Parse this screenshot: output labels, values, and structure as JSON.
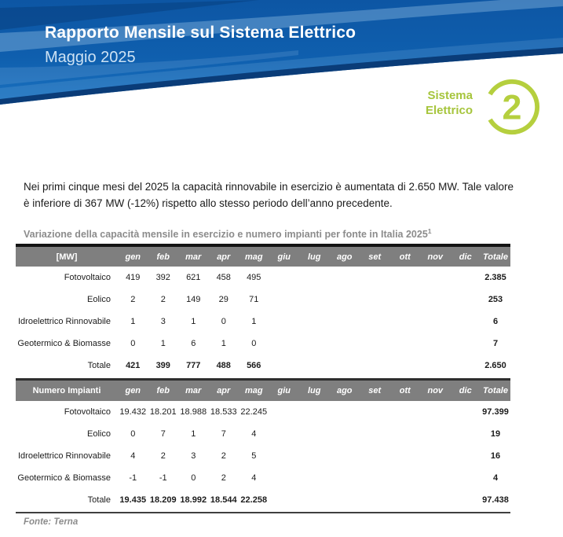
{
  "colors": {
    "blue_main": "#0f5caa",
    "blue_dark_edge": "#0a3c78",
    "green": "#a6c53c",
    "green_circle": "#b5cf3e",
    "header_gray": "#7f7f7f",
    "caption_gray": "#8c8c8c",
    "text_dark": "#1a1a1a"
  },
  "header": {
    "title": "Rapporto Mensile sul Sistema Elettrico",
    "subtitle": "Maggio 2025",
    "section_label_line1": "Sistema",
    "section_label_line2": "Elettrico",
    "section_number": "2"
  },
  "intro_paragraph": "Nei primi cinque mesi del 2025 la capacità rinnovabile in esercizio è aumentata di 2.650 MW. Tale valore è inferiore di 367 MW (-12%) rispetto allo stesso periodo dell’anno precedente.",
  "table_caption": {
    "text": "Variazione della capacità mensile in esercizio e numero impianti per fonte in Italia 2025",
    "footnote_marker": "1"
  },
  "months": [
    "gen",
    "feb",
    "mar",
    "apr",
    "mag",
    "giu",
    "lug",
    "ago",
    "set",
    "ott",
    "nov",
    "dic"
  ],
  "total_header": "Totale",
  "tables": [
    {
      "unit_label": "[MW]",
      "rows": [
        {
          "label": "Fotovoltaico",
          "values": [
            "419",
            "392",
            "621",
            "458",
            "495",
            "",
            "",
            "",
            "",
            "",
            "",
            ""
          ],
          "total": "2.385"
        },
        {
          "label": "Eolico",
          "values": [
            "2",
            "2",
            "149",
            "29",
            "71",
            "",
            "",
            "",
            "",
            "",
            "",
            ""
          ],
          "total": "253"
        },
        {
          "label": "Idroelettrico Rinnovabile",
          "values": [
            "1",
            "3",
            "1",
            "0",
            "1",
            "",
            "",
            "",
            "",
            "",
            "",
            ""
          ],
          "total": "6"
        },
        {
          "label": "Geotermico & Biomasse",
          "values": [
            "0",
            "1",
            "6",
            "1",
            "0",
            "",
            "",
            "",
            "",
            "",
            "",
            ""
          ],
          "total": "7"
        }
      ],
      "totals_row": {
        "label": "Totale",
        "values": [
          "421",
          "399",
          "777",
          "488",
          "566",
          "",
          "",
          "",
          "",
          "",
          "",
          ""
        ],
        "total": "2.650"
      }
    },
    {
      "unit_label": "Numero Impianti",
      "rows": [
        {
          "label": "Fotovoltaico",
          "values": [
            "19.432",
            "18.201",
            "18.988",
            "18.533",
            "22.245",
            "",
            "",
            "",
            "",
            "",
            "",
            ""
          ],
          "total": "97.399"
        },
        {
          "label": "Eolico",
          "values": [
            "0",
            "7",
            "1",
            "7",
            "4",
            "",
            "",
            "",
            "",
            "",
            "",
            ""
          ],
          "total": "19"
        },
        {
          "label": "Idroelettrico Rinnovabile",
          "values": [
            "4",
            "2",
            "3",
            "2",
            "5",
            "",
            "",
            "",
            "",
            "",
            "",
            ""
          ],
          "total": "16"
        },
        {
          "label": "Geotermico & Biomasse",
          "values": [
            "-1",
            "-1",
            "0",
            "2",
            "4",
            "",
            "",
            "",
            "",
            "",
            "",
            ""
          ],
          "total": "4"
        }
      ],
      "totals_row": {
        "label": "Totale",
        "values": [
          "19.435",
          "18.209",
          "18.992",
          "18.544",
          "22.258",
          "",
          "",
          "",
          "",
          "",
          "",
          ""
        ],
        "total": "97.438"
      }
    }
  ],
  "footer": {
    "source": "Fonte: Terna"
  }
}
